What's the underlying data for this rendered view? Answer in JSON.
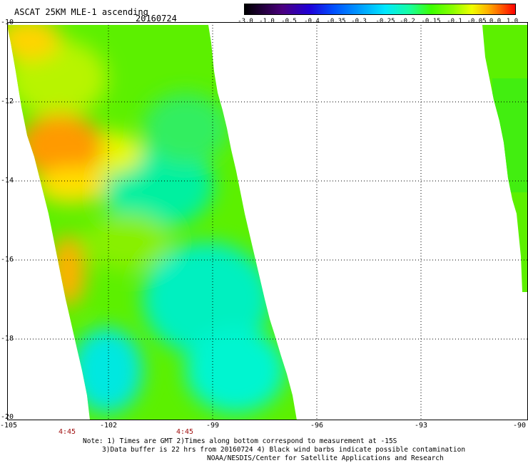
{
  "header": {
    "title": "ASCAT 25KM MLE-1 ascending",
    "date": "20160724"
  },
  "colorbar": {
    "labels": [
      "-3.0",
      "-1.0",
      "-0.5",
      "-0.4",
      "-0.35",
      "-0.3",
      "-0.25",
      "-0.2",
      "-0.15",
      "-0.1",
      "-0.05",
      "0.0",
      "1.0"
    ]
  },
  "axes": {
    "y_labels": [
      "-10",
      "-12",
      "-14",
      "-16",
      "-18",
      "-20"
    ],
    "x_labels": [
      "-105",
      "-102",
      "-99",
      "-96",
      "-93",
      "-90"
    ],
    "lon_range": [
      -105,
      -90
    ],
    "lat_range": [
      -20,
      -10
    ]
  },
  "swath_times": [
    "4:45",
    "4:45"
  ],
  "notes": {
    "line1": "Note: 1) Times are GMT 2)Times along bottom correspond to measurement at -15S",
    "line2": "3)Data buffer is 22 hrs from 20160724 4) Black wind barbs indicate possible contamination",
    "line3": "NOAA/NESDIS/Center for Satellite Applications and Research"
  },
  "colors": {
    "land_bg": "#ffffff",
    "time_label": "#a01010",
    "grid": "#000000"
  }
}
